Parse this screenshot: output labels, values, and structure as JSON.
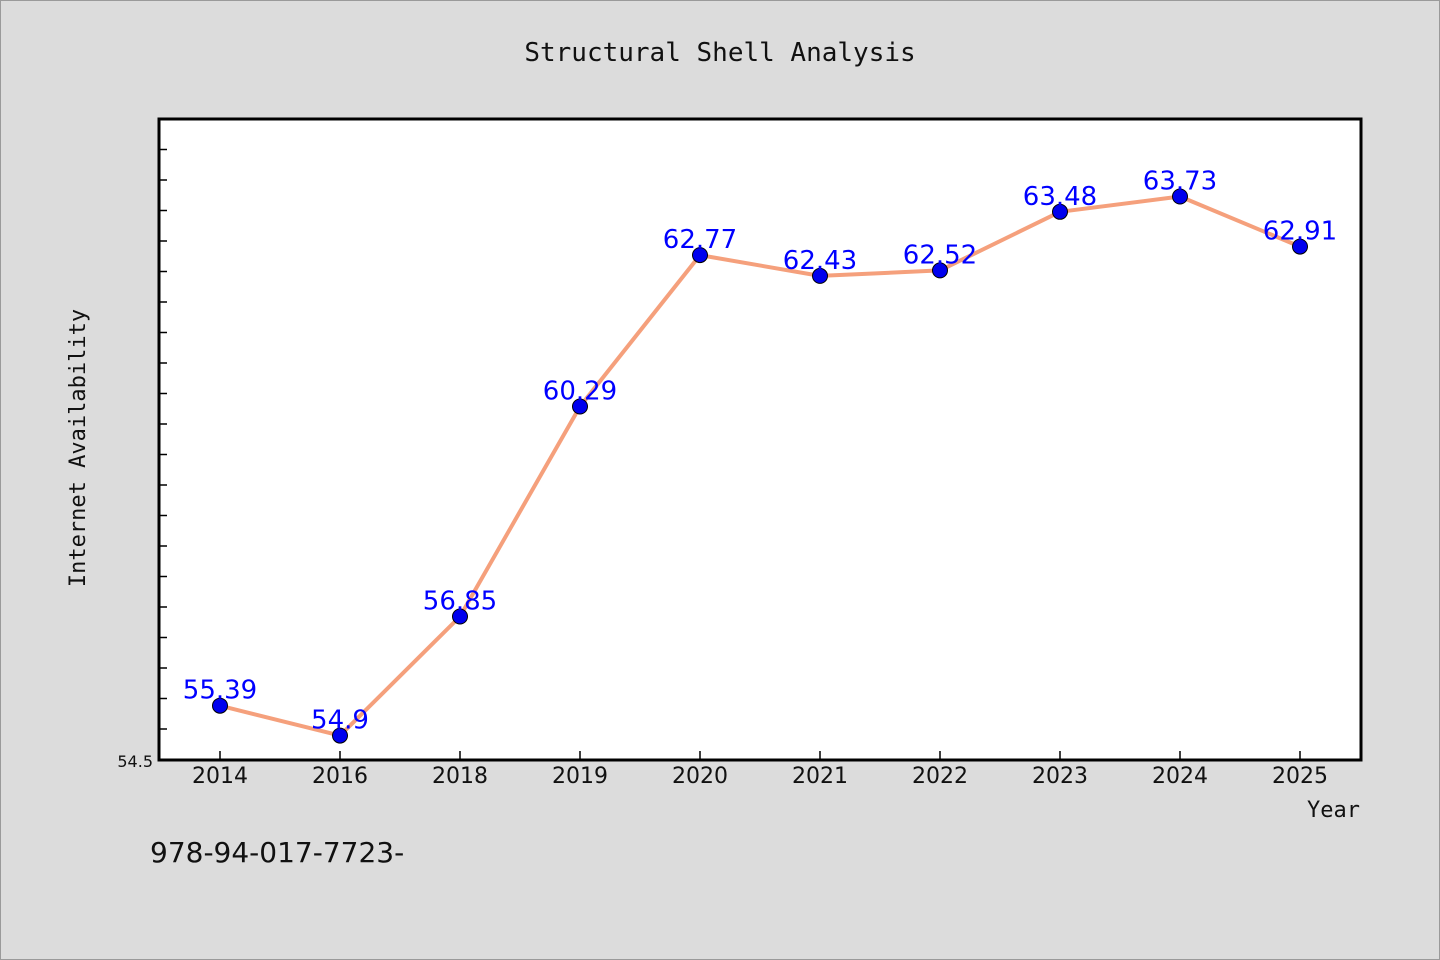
{
  "chart_data": {
    "type": "line",
    "title": "Structural Shell Analysis",
    "xlabel": "Year",
    "ylabel": "Internet Availability",
    "categories": [
      "2014",
      "2016",
      "2018",
      "2019",
      "2020",
      "2021",
      "2022",
      "2023",
      "2024",
      "2025"
    ],
    "series": [
      {
        "values": [
          55.39,
          54.9,
          56.85,
          60.29,
          62.77,
          62.43,
          62.52,
          63.48,
          63.73,
          62.91
        ],
        "labels": [
          "55.39",
          "54.9",
          "56.85",
          "60.29",
          "62.77",
          "62.43",
          "62.52",
          "63.48",
          "63.73",
          "62.91"
        ],
        "line_color": "#f5a07c",
        "marker_color": "#0000ee",
        "label_color": "#0000ff"
      }
    ],
    "ylim": [
      54.5,
      65.0
    ],
    "yticks_labeled": [
      "54.5"
    ],
    "grid": false,
    "legend": "none"
  },
  "footer": {
    "text": "978-94-017-7723-"
  }
}
